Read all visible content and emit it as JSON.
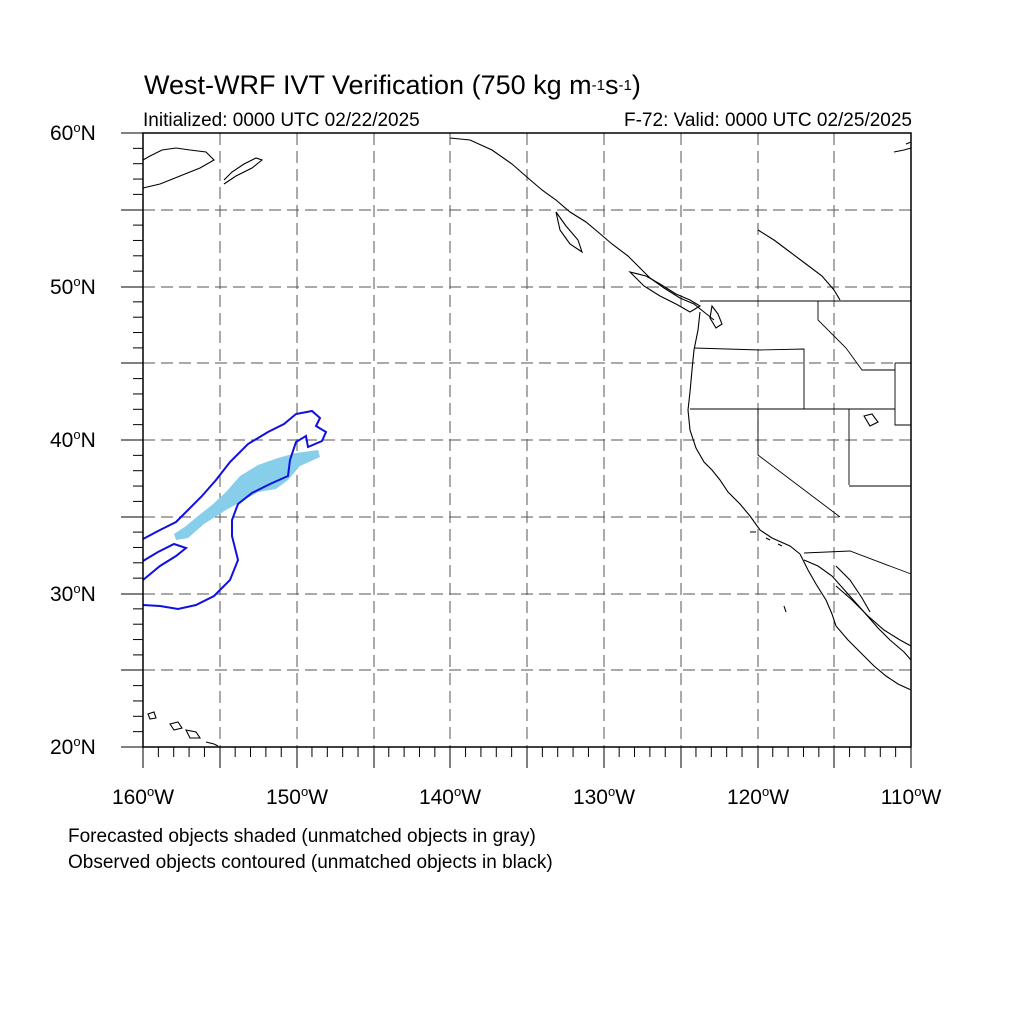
{
  "title": {
    "main": "West-WRF IVT Verification (750 kg m",
    "sup1": "-1",
    "mid": "s",
    "sup2": "-1",
    "close": ")"
  },
  "initialized": "Initialized: 0000 UTC 02/22/2025",
  "valid": "F-72: Valid: 0000 UTC 02/25/2025",
  "lat_labels": [
    {
      "text": "60",
      "suffix": "N"
    },
    {
      "text": "50",
      "suffix": "N"
    },
    {
      "text": "40",
      "suffix": "N"
    },
    {
      "text": "30",
      "suffix": "N"
    },
    {
      "text": "20",
      "suffix": "N"
    }
  ],
  "lon_labels": [
    {
      "text": "160",
      "suffix": "W"
    },
    {
      "text": "150",
      "suffix": "W"
    },
    {
      "text": "140",
      "suffix": "W"
    },
    {
      "text": "130",
      "suffix": "W"
    },
    {
      "text": "120",
      "suffix": "W"
    },
    {
      "text": "110",
      "suffix": "W"
    }
  ],
  "notes": {
    "forecast": "Forecasted objects shaded (unmatched objects in gray)",
    "observed": "Observed objects contoured (unmatched objects in black)"
  },
  "colors": {
    "forecast_fill": "#87ceeb",
    "observed_contour": "#1010e0",
    "coastline": "#000000",
    "grid": "#555555"
  }
}
